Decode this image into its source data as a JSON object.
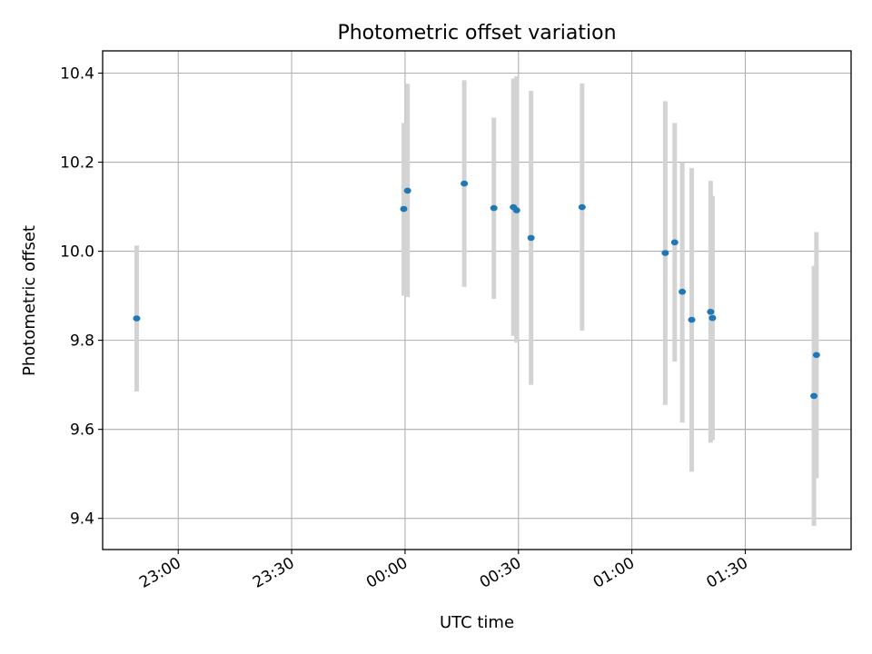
{
  "chart_data": {
    "type": "scatter",
    "title": "Photometric offset variation",
    "xlabel": "UTC time",
    "ylabel": "Photometric offset",
    "x_is_time": true,
    "xlim": [
      "22:40",
      "01:58"
    ],
    "ylim": [
      9.33,
      10.45
    ],
    "xticks": [
      "23:00",
      "23:30",
      "00:00",
      "00:30",
      "01:00",
      "01:30"
    ],
    "yticks": [
      "9.4",
      "9.6",
      "9.8",
      "10.0",
      "10.2",
      "10.4"
    ],
    "grid": true,
    "marker_color": "#1f77b4",
    "errorbar_color": "#d3d3d3",
    "points": [
      {
        "t": "22:49:00",
        "y": 9.849,
        "lo": 9.685,
        "hi": 10.013
      },
      {
        "t": "23:59:40",
        "y": 10.095,
        "lo": 9.9,
        "hi": 10.288
      },
      {
        "t": "00:00:40",
        "y": 10.136,
        "lo": 9.897,
        "hi": 10.376
      },
      {
        "t": "00:15:40",
        "y": 10.152,
        "lo": 9.92,
        "hi": 10.384
      },
      {
        "t": "00:23:30",
        "y": 10.097,
        "lo": 9.893,
        "hi": 10.3
      },
      {
        "t": "00:28:40",
        "y": 10.099,
        "lo": 9.81,
        "hi": 10.388
      },
      {
        "t": "00:29:30",
        "y": 10.092,
        "lo": 9.795,
        "hi": 10.393
      },
      {
        "t": "00:33:20",
        "y": 10.03,
        "lo": 9.7,
        "hi": 10.36
      },
      {
        "t": "00:46:50",
        "y": 10.099,
        "lo": 9.822,
        "hi": 10.377
      },
      {
        "t": "01:08:50",
        "y": 9.996,
        "lo": 9.655,
        "hi": 10.337
      },
      {
        "t": "01:11:20",
        "y": 10.02,
        "lo": 9.752,
        "hi": 10.288
      },
      {
        "t": "01:13:20",
        "y": 9.909,
        "lo": 9.615,
        "hi": 10.2
      },
      {
        "t": "01:15:50",
        "y": 9.846,
        "lo": 9.505,
        "hi": 10.187
      },
      {
        "t": "01:20:50",
        "y": 9.864,
        "lo": 9.57,
        "hi": 10.158
      },
      {
        "t": "01:21:20",
        "y": 9.85,
        "lo": 9.576,
        "hi": 10.124
      },
      {
        "t": "01:48:10",
        "y": 9.675,
        "lo": 9.383,
        "hi": 9.967
      },
      {
        "t": "01:48:50",
        "y": 9.767,
        "lo": 9.49,
        "hi": 10.043
      }
    ]
  }
}
